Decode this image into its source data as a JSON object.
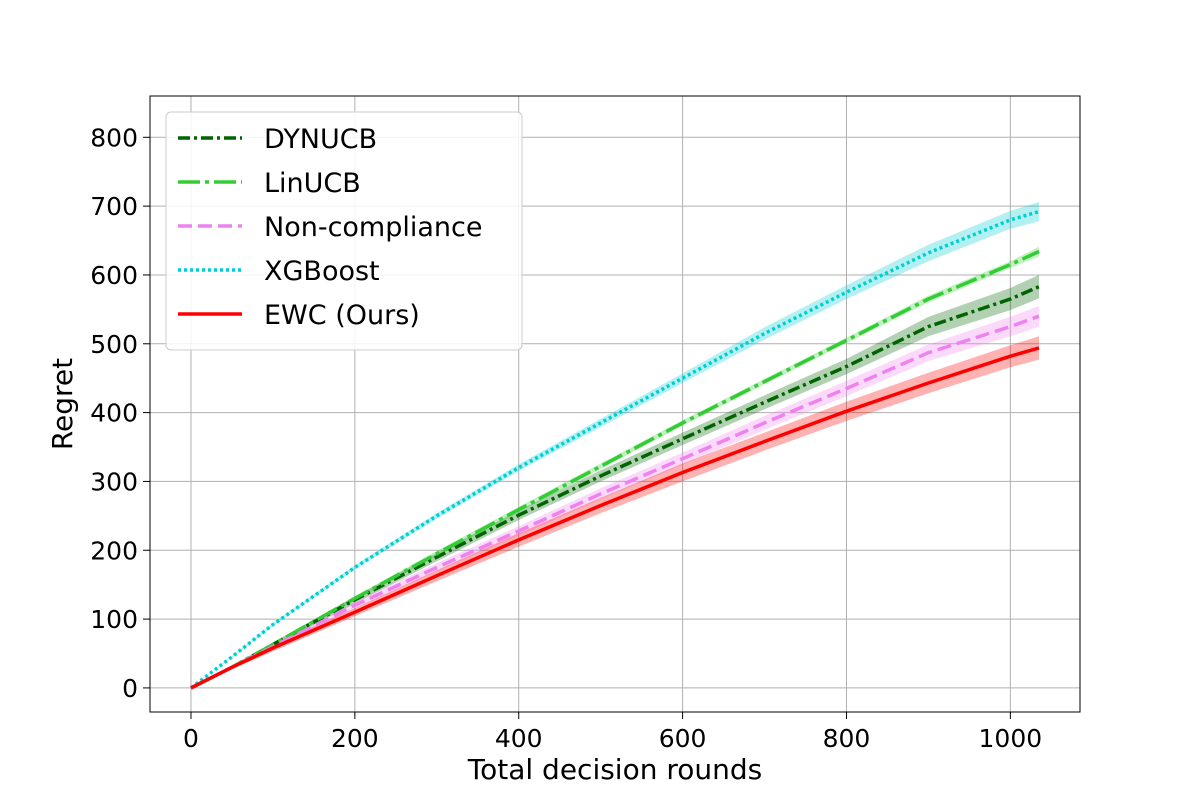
{
  "chart_data": {
    "type": "line",
    "title": "",
    "xlabel": "Total decision rounds",
    "ylabel": "Regret",
    "xlim": [
      -50,
      1085
    ],
    "ylim": [
      -35,
      860
    ],
    "xticks": [
      0,
      200,
      400,
      600,
      800,
      1000
    ],
    "yticks": [
      0,
      100,
      200,
      300,
      400,
      500,
      600,
      700,
      800
    ],
    "grid": true,
    "legend_position": "upper-left",
    "series": [
      {
        "name": "DYNUCB",
        "color": "#006400",
        "dash": "dashdot",
        "band_opacity": 0.3,
        "x": [
          0,
          50,
          100,
          200,
          300,
          400,
          500,
          600,
          700,
          800,
          900,
          1000,
          1035
        ],
        "y": [
          0,
          30,
          63,
          128,
          190,
          251,
          308,
          362,
          415,
          467,
          525,
          565,
          583
        ],
        "lo": [
          0,
          28,
          60,
          123,
          184,
          244,
          300,
          353,
          405,
          456,
          511,
          549,
          566
        ],
        "hi": [
          0,
          32,
          66,
          133,
          196,
          258,
          316,
          371,
          425,
          478,
          539,
          581,
          600
        ]
      },
      {
        "name": "LinUCB",
        "color": "#32CD32",
        "dash": "longdashdot",
        "band_opacity": 0.3,
        "x": [
          0,
          50,
          100,
          200,
          300,
          400,
          500,
          600,
          700,
          800,
          900,
          1000,
          1035
        ],
        "y": [
          0,
          30,
          63,
          130,
          195,
          259,
          322,
          385,
          445,
          505,
          565,
          615,
          634
        ],
        "lo": [
          0,
          29,
          61,
          127,
          191,
          255,
          318,
          381,
          441,
          501,
          560,
          610,
          627
        ],
        "hi": [
          0,
          31,
          65,
          133,
          199,
          263,
          326,
          389,
          449,
          509,
          570,
          620,
          641
        ]
      },
      {
        "name": "Non-compliance",
        "color": "#EE82EE",
        "dash": "dashed",
        "band_opacity": 0.3,
        "x": [
          0,
          50,
          100,
          200,
          300,
          400,
          500,
          600,
          700,
          800,
          900,
          1000,
          1035
        ],
        "y": [
          0,
          30,
          60,
          120,
          175,
          228,
          282,
          333,
          385,
          435,
          487,
          525,
          540
        ],
        "lo": [
          0,
          28,
          57,
          115,
          169,
          221,
          274,
          324,
          375,
          424,
          475,
          511,
          525
        ],
        "hi": [
          0,
          32,
          63,
          125,
          181,
          235,
          290,
          342,
          395,
          446,
          499,
          539,
          555
        ]
      },
      {
        "name": "XGBoost",
        "color": "#00CED1",
        "dash": "dotted",
        "band_opacity": 0.3,
        "x": [
          0,
          50,
          100,
          200,
          300,
          400,
          500,
          600,
          700,
          800,
          900,
          1000,
          1035
        ],
        "y": [
          0,
          45,
          92,
          175,
          250,
          320,
          385,
          450,
          515,
          575,
          632,
          680,
          692
        ],
        "lo": [
          0,
          44,
          90,
          172,
          246,
          315,
          379,
          443,
          506,
          565,
          620,
          667,
          678
        ],
        "hi": [
          0,
          46,
          94,
          178,
          254,
          325,
          391,
          457,
          524,
          585,
          644,
          693,
          706
        ]
      },
      {
        "name": "EWC (Ours)",
        "color": "#FF0000",
        "dash": "solid",
        "band_opacity": 0.3,
        "x": [
          0,
          50,
          100,
          200,
          300,
          400,
          500,
          600,
          700,
          800,
          900,
          1000,
          1035
        ],
        "y": [
          0,
          30,
          58,
          110,
          163,
          215,
          265,
          313,
          358,
          402,
          443,
          482,
          494
        ],
        "lo": [
          0,
          27,
          53,
          104,
          155,
          205,
          254,
          300,
          345,
          388,
          428,
          466,
          477
        ],
        "hi": [
          0,
          33,
          63,
          116,
          171,
          225,
          276,
          326,
          371,
          416,
          458,
          498,
          511
        ]
      }
    ]
  }
}
